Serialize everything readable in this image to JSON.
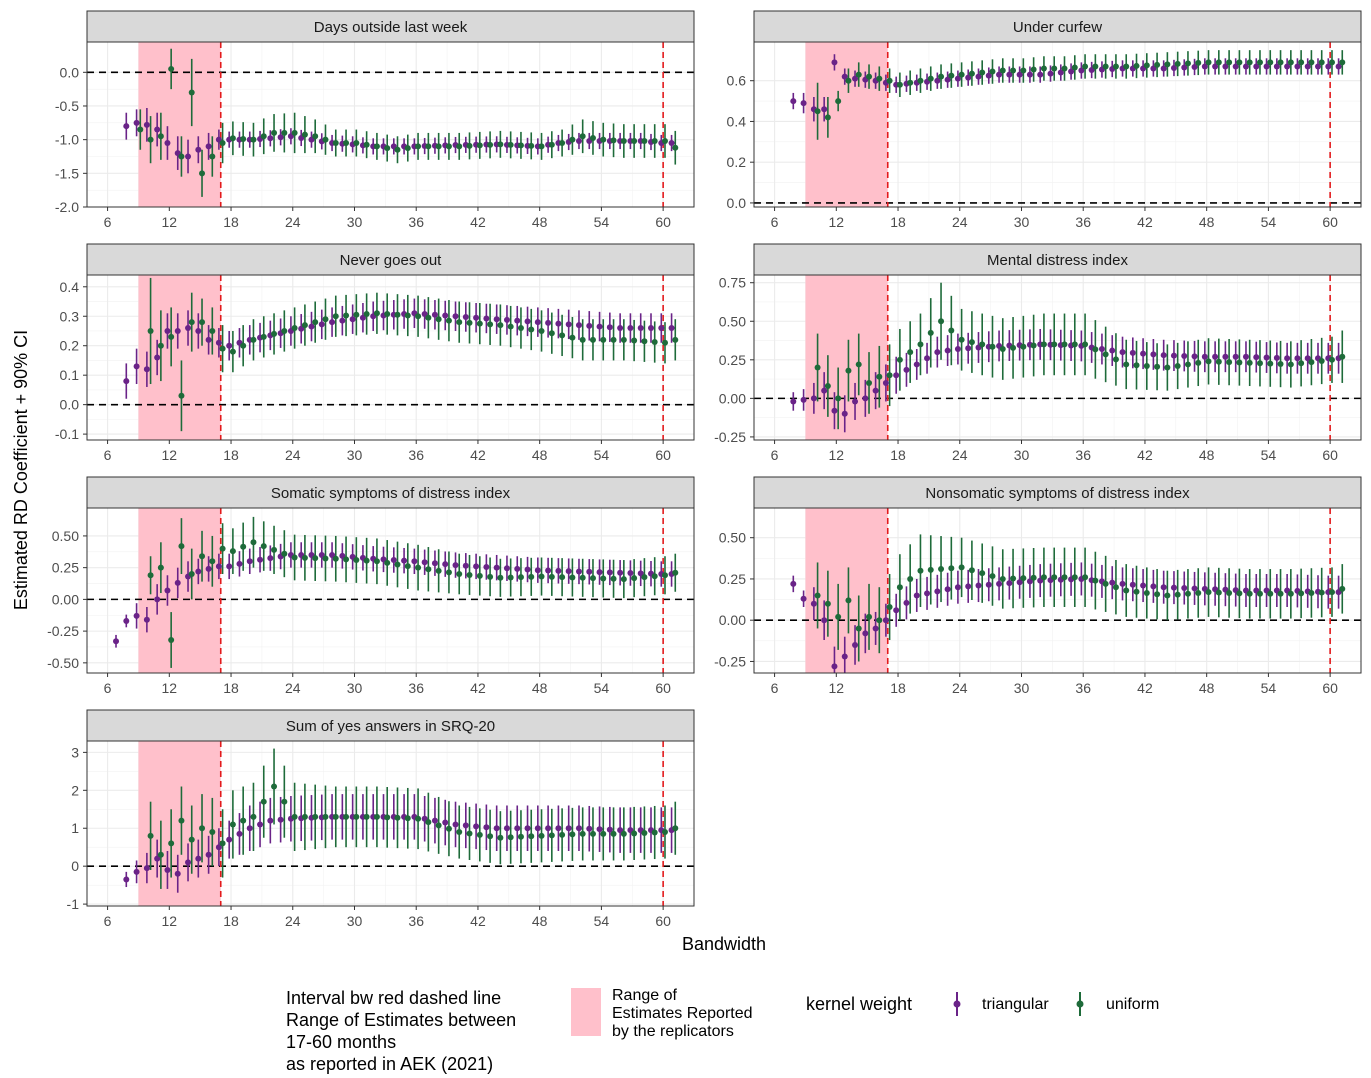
{
  "chart_data": {
    "type": "scatter",
    "xlabel": "Bandwidth",
    "ylabel": "Estimated RD Coefficient + 90% CI",
    "x_ticks": [
      6,
      12,
      18,
      24,
      30,
      36,
      42,
      48,
      54,
      60
    ],
    "xlim": [
      4,
      63
    ],
    "shaded_range": [
      9,
      17
    ],
    "red_dashed_lines": [
      17,
      60
    ],
    "zero_line": 0,
    "colors": {
      "triangular": "#6a2388",
      "uniform": "#1e6b3a",
      "shade": "#ffc0cb",
      "red_line": "#e31a1c"
    },
    "panels": [
      {
        "title": "Days outside last week",
        "ylim": [
          -2.0,
          0.45
        ],
        "y_ticks": [
          -2.0,
          -1.5,
          -1.0,
          -0.5,
          0.0
        ],
        "y_tick_labels": [
          "-2.0",
          "-1.5",
          "-1.0",
          "-0.5",
          "0.0"
        ],
        "anchors": {
          "x": [
            8,
            9,
            10,
            11,
            12,
            13,
            14,
            15,
            16,
            17,
            18,
            20,
            22,
            24,
            26,
            28,
            30,
            32,
            34,
            36,
            40,
            44,
            48,
            50,
            52,
            54,
            56,
            58,
            60,
            61
          ],
          "tri": [
            -0.8,
            -0.75,
            -0.78,
            -0.85,
            -1.05,
            -1.2,
            -1.25,
            -1.15,
            -1.1,
            -1.0,
            -1.0,
            -1.0,
            -0.98,
            -0.95,
            -1.0,
            -1.05,
            -1.07,
            -1.1,
            -1.1,
            -1.1,
            -1.08,
            -1.07,
            -1.1,
            -1.05,
            -1.02,
            -1.02,
            -1.02,
            -1.02,
            -1.05,
            -1.05
          ],
          "tri_ci": [
            0.2,
            0.2,
            0.25,
            0.25,
            0.25,
            0.25,
            0.25,
            0.2,
            0.2,
            0.15,
            0.12,
            0.12,
            0.12,
            0.12,
            0.12,
            0.12,
            0.12,
            0.12,
            0.12,
            0.12,
            0.12,
            0.12,
            0.12,
            0.12,
            0.12,
            0.12,
            0.12,
            0.12,
            0.12,
            0.12
          ],
          "uni": [
            null,
            -0.85,
            -1.0,
            -0.95,
            0.05,
            -1.25,
            -0.3,
            -1.5,
            -1.25,
            -1.05,
            -0.98,
            -1.0,
            -0.9,
            -0.9,
            -0.95,
            -1.05,
            -1.05,
            -1.1,
            -1.15,
            -1.1,
            -1.1,
            -1.07,
            -1.1,
            -1.05,
            -0.95,
            -1.0,
            -1.02,
            -1.02,
            -1.02,
            -1.12
          ],
          "uni_ci": [
            0.3,
            0.3,
            0.35,
            0.35,
            0.3,
            0.3,
            0.5,
            0.35,
            0.3,
            0.3,
            0.25,
            0.25,
            0.28,
            0.3,
            0.25,
            0.2,
            0.2,
            0.2,
            0.2,
            0.2,
            0.2,
            0.2,
            0.2,
            0.2,
            0.25,
            0.25,
            0.25,
            0.25,
            0.25,
            0.25
          ]
        }
      },
      {
        "title": "Under curfew",
        "ylim": [
          -0.02,
          0.79
        ],
        "y_ticks": [
          0.0,
          0.2,
          0.4,
          0.6
        ],
        "y_tick_labels": [
          "0.0",
          "0.2",
          "0.4",
          "0.6"
        ],
        "anchors": {
          "x": [
            8,
            9,
            10,
            11,
            12,
            13,
            14,
            16,
            17,
            18,
            20,
            22,
            24,
            26,
            28,
            30,
            32,
            34,
            36,
            40,
            44,
            48,
            52,
            56,
            60,
            61
          ],
          "tri": [
            0.5,
            0.49,
            0.46,
            0.46,
            0.69,
            0.62,
            0.61,
            0.6,
            0.59,
            0.58,
            0.59,
            0.6,
            0.61,
            0.62,
            0.63,
            0.63,
            0.63,
            0.64,
            0.65,
            0.66,
            0.66,
            0.67,
            0.67,
            0.67,
            0.67,
            0.67
          ],
          "tri_ci": [
            0.04,
            0.05,
            0.06,
            0.06,
            0.04,
            0.04,
            0.04,
            0.04,
            0.04,
            0.04,
            0.04,
            0.04,
            0.04,
            0.04,
            0.04,
            0.04,
            0.04,
            0.04,
            0.04,
            0.04,
            0.04,
            0.04,
            0.04,
            0.04,
            0.04,
            0.04
          ],
          "uni": [
            null,
            null,
            0.45,
            0.42,
            0.5,
            0.6,
            0.63,
            0.61,
            0.6,
            0.58,
            0.6,
            0.62,
            0.63,
            0.64,
            0.65,
            0.65,
            0.66,
            0.66,
            0.67,
            0.67,
            0.68,
            0.69,
            0.69,
            0.69,
            0.69,
            0.69
          ],
          "uni_ci": [
            0.06,
            0.06,
            0.14,
            0.1,
            0.05,
            0.06,
            0.06,
            0.06,
            0.06,
            0.06,
            0.06,
            0.06,
            0.06,
            0.06,
            0.06,
            0.06,
            0.06,
            0.06,
            0.06,
            0.06,
            0.06,
            0.06,
            0.06,
            0.06,
            0.06,
            0.06
          ]
        }
      },
      {
        "title": "Never goes out",
        "ylim": [
          -0.12,
          0.44
        ],
        "y_ticks": [
          -0.1,
          0.0,
          0.1,
          0.2,
          0.3,
          0.4
        ],
        "y_tick_labels": [
          "-0.1",
          "0.0",
          "0.1",
          "0.2",
          "0.3",
          "0.4"
        ],
        "anchors": {
          "x": [
            8,
            9,
            10,
            11,
            12,
            13,
            14,
            15,
            16,
            17,
            18,
            20,
            24,
            28,
            32,
            36,
            40,
            44,
            48,
            52,
            56,
            60,
            61
          ],
          "tri": [
            0.08,
            0.13,
            0.12,
            0.16,
            0.25,
            0.25,
            0.26,
            0.25,
            0.22,
            0.21,
            0.2,
            0.22,
            0.25,
            0.28,
            0.3,
            0.31,
            0.3,
            0.29,
            0.28,
            0.27,
            0.26,
            0.26,
            0.26
          ],
          "tri_ci": [
            0.06,
            0.06,
            0.06,
            0.06,
            0.06,
            0.06,
            0.06,
            0.06,
            0.05,
            0.05,
            0.05,
            0.05,
            0.05,
            0.05,
            0.05,
            0.05,
            0.05,
            0.05,
            0.05,
            0.05,
            0.05,
            0.05,
            0.05
          ],
          "uni": [
            null,
            null,
            0.25,
            0.2,
            0.23,
            0.03,
            0.28,
            0.28,
            0.25,
            0.19,
            0.18,
            0.22,
            0.26,
            0.3,
            0.31,
            0.3,
            0.28,
            0.27,
            0.25,
            0.22,
            0.22,
            0.21,
            0.22
          ],
          "uni_ci": [
            0.1,
            0.1,
            0.18,
            0.12,
            0.1,
            0.12,
            0.1,
            0.08,
            0.08,
            0.08,
            0.07,
            0.07,
            0.07,
            0.07,
            0.07,
            0.07,
            0.07,
            0.07,
            0.07,
            0.07,
            0.07,
            0.07,
            0.07
          ]
        }
      },
      {
        "title": "Mental distress index",
        "ylim": [
          -0.27,
          0.8
        ],
        "y_ticks": [
          -0.25,
          0.0,
          0.25,
          0.5,
          0.75
        ],
        "y_tick_labels": [
          "-0.25",
          "0.00",
          "0.25",
          "0.50",
          "0.75"
        ],
        "anchors": {
          "x": [
            8,
            9,
            10,
            11,
            12,
            13,
            14,
            15,
            16,
            17,
            18,
            20,
            22,
            24,
            28,
            32,
            36,
            40,
            44,
            48,
            52,
            56,
            60,
            61
          ],
          "tri": [
            -0.02,
            -0.01,
            0.0,
            0.05,
            -0.08,
            -0.1,
            -0.02,
            0.0,
            0.05,
            0.1,
            0.15,
            0.22,
            0.3,
            0.32,
            0.34,
            0.35,
            0.34,
            0.3,
            0.28,
            0.27,
            0.27,
            0.26,
            0.26,
            0.26
          ],
          "tri_ci": [
            0.06,
            0.07,
            0.1,
            0.12,
            0.12,
            0.12,
            0.12,
            0.12,
            0.12,
            0.12,
            0.12,
            0.1,
            0.1,
            0.1,
            0.1,
            0.1,
            0.1,
            0.1,
            0.1,
            0.1,
            0.1,
            0.1,
            0.1,
            0.1
          ],
          "uni": [
            null,
            null,
            0.2,
            0.08,
            0.0,
            0.18,
            0.22,
            0.1,
            0.14,
            0.15,
            0.25,
            0.35,
            0.5,
            0.38,
            0.32,
            0.35,
            0.35,
            0.22,
            0.2,
            0.24,
            0.23,
            0.22,
            0.25,
            0.27
          ],
          "uni_ci": [
            0.2,
            0.2,
            0.22,
            0.2,
            0.2,
            0.2,
            0.2,
            0.2,
            0.2,
            0.2,
            0.2,
            0.2,
            0.25,
            0.2,
            0.2,
            0.2,
            0.2,
            0.16,
            0.15,
            0.15,
            0.15,
            0.15,
            0.15,
            0.17
          ]
        }
      },
      {
        "title": "Somatic symptoms of distress index",
        "ylim": [
          -0.58,
          0.72
        ],
        "y_ticks": [
          -0.5,
          -0.25,
          0.0,
          0.25,
          0.5
        ],
        "y_tick_labels": [
          "-0.50",
          "-0.25",
          "0.00",
          "0.25",
          "0.50"
        ],
        "anchors": {
          "x": [
            7,
            8,
            9,
            10,
            11,
            12,
            13,
            14,
            15,
            16,
            17,
            18,
            20,
            24,
            28,
            32,
            36,
            40,
            44,
            48,
            52,
            56,
            60,
            61
          ],
          "tri": [
            -0.33,
            -0.17,
            -0.13,
            -0.16,
            0.0,
            0.07,
            0.13,
            0.18,
            0.22,
            0.24,
            0.26,
            0.26,
            0.3,
            0.35,
            0.35,
            0.32,
            0.3,
            0.27,
            0.25,
            0.23,
            0.22,
            0.21,
            0.2,
            0.2
          ],
          "tri_ci": [
            0.05,
            0.05,
            0.1,
            0.1,
            0.12,
            0.12,
            0.12,
            0.12,
            0.1,
            0.1,
            0.1,
            0.1,
            0.1,
            0.1,
            0.1,
            0.1,
            0.1,
            0.1,
            0.1,
            0.1,
            0.1,
            0.1,
            0.1,
            0.1
          ],
          "uni": [
            null,
            null,
            null,
            0.19,
            0.25,
            -0.32,
            0.42,
            0.2,
            0.34,
            0.3,
            0.4,
            0.38,
            0.45,
            0.33,
            0.32,
            0.3,
            0.25,
            0.2,
            0.17,
            0.18,
            0.17,
            0.16,
            0.19,
            0.21
          ],
          "uni_ci": [
            0.15,
            0.15,
            0.15,
            0.15,
            0.2,
            0.22,
            0.22,
            0.2,
            0.2,
            0.2,
            0.2,
            0.18,
            0.2,
            0.18,
            0.18,
            0.18,
            0.18,
            0.16,
            0.15,
            0.15,
            0.15,
            0.15,
            0.15,
            0.15
          ]
        }
      },
      {
        "title": "Nonsomatic symptoms of distress index",
        "ylim": [
          -0.32,
          0.68
        ],
        "y_ticks": [
          -0.25,
          0.0,
          0.25,
          0.5
        ],
        "y_tick_labels": [
          "-0.25",
          "0.00",
          "0.25",
          "0.50"
        ],
        "anchors": {
          "x": [
            8,
            9,
            10,
            11,
            12,
            13,
            14,
            15,
            16,
            17,
            18,
            20,
            24,
            28,
            32,
            36,
            40,
            44,
            48,
            52,
            56,
            60,
            61
          ],
          "tri": [
            0.22,
            0.13,
            0.1,
            0.0,
            -0.28,
            -0.22,
            -0.15,
            -0.08,
            -0.05,
            0.0,
            0.06,
            0.15,
            0.2,
            0.22,
            0.24,
            0.25,
            0.22,
            0.2,
            0.19,
            0.18,
            0.18,
            0.17,
            0.17
          ],
          "tri_ci": [
            0.05,
            0.05,
            0.1,
            0.12,
            0.12,
            0.12,
            0.12,
            0.12,
            0.1,
            0.1,
            0.1,
            0.1,
            0.1,
            0.1,
            0.1,
            0.1,
            0.1,
            0.1,
            0.1,
            0.1,
            0.1,
            0.1,
            0.1
          ],
          "uni": [
            null,
            null,
            0.15,
            0.1,
            0.02,
            0.12,
            -0.05,
            0.02,
            0.0,
            0.08,
            0.2,
            0.3,
            0.32,
            0.25,
            0.26,
            0.26,
            0.18,
            0.15,
            0.17,
            0.16,
            0.16,
            0.17,
            0.19
          ],
          "uni_ci": [
            0.15,
            0.15,
            0.2,
            0.2,
            0.2,
            0.2,
            0.2,
            0.2,
            0.2,
            0.2,
            0.2,
            0.22,
            0.18,
            0.18,
            0.18,
            0.18,
            0.16,
            0.15,
            0.15,
            0.15,
            0.15,
            0.15,
            0.15
          ]
        }
      },
      {
        "title": "Sum of yes answers in SRQ-20",
        "ylim": [
          -1.05,
          3.3
        ],
        "y_ticks": [
          -1,
          0,
          1,
          2,
          3
        ],
        "y_tick_labels": [
          "-1",
          "0",
          "1",
          "2",
          "3"
        ],
        "anchors": {
          "x": [
            8,
            9,
            10,
            11,
            12,
            13,
            14,
            15,
            16,
            17,
            18,
            20,
            22,
            24,
            28,
            32,
            36,
            40,
            44,
            48,
            52,
            56,
            60,
            61
          ],
          "tri": [
            -0.35,
            -0.15,
            -0.05,
            0.2,
            -0.1,
            -0.2,
            0.1,
            0.2,
            0.3,
            0.5,
            0.7,
            1.0,
            1.2,
            1.25,
            1.3,
            1.3,
            1.3,
            1.1,
            1.0,
            1.0,
            1.0,
            0.95,
            0.95,
            0.95
          ],
          "tri_ci": [
            0.2,
            0.3,
            0.4,
            0.5,
            0.5,
            0.5,
            0.5,
            0.5,
            0.5,
            0.5,
            0.5,
            0.6,
            0.6,
            0.6,
            0.6,
            0.6,
            0.6,
            0.6,
            0.6,
            0.6,
            0.6,
            0.6,
            0.6,
            0.6
          ],
          "uni": [
            null,
            null,
            0.8,
            0.3,
            0.6,
            1.2,
            0.7,
            1.0,
            0.9,
            0.6,
            1.1,
            1.3,
            2.1,
            1.3,
            1.3,
            1.3,
            1.25,
            0.9,
            0.75,
            0.8,
            0.85,
            0.85,
            0.9,
            1.0
          ],
          "uni_ci": [
            0.7,
            0.7,
            0.9,
            0.9,
            0.9,
            0.9,
            0.9,
            0.9,
            0.9,
            0.9,
            0.9,
            0.9,
            1.0,
            0.9,
            0.8,
            0.8,
            0.8,
            0.7,
            0.7,
            0.7,
            0.7,
            0.7,
            0.7,
            0.7
          ]
        }
      }
    ],
    "legend": {
      "placement": "bottom",
      "interval_title_lines": [
        "Interval bw red dashed line",
        "Range of Estimates between",
        "17-60 months",
        "as reported in AEK (2021)"
      ],
      "range_label_lines": [
        "Range of",
        "Estimates Reported",
        "by the replicators"
      ],
      "kernel_title": "kernel weight",
      "series": [
        "triangular",
        "uniform"
      ]
    }
  }
}
